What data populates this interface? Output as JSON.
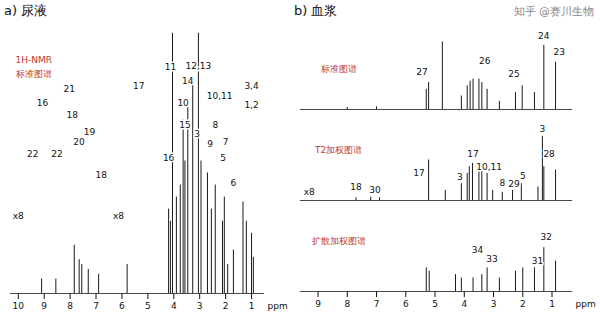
{
  "chart_data": [
    {
      "type": "stem",
      "title": "a) 尿液",
      "color": "#1a1a1a",
      "x": [
        0.93,
        1.0,
        1.2,
        1.33,
        1.7,
        1.92,
        2.05,
        2.12,
        2.4,
        2.55,
        2.7,
        2.95,
        3.05,
        3.27,
        3.46,
        3.57,
        3.64,
        3.75,
        3.9,
        4.05,
        4.13,
        4.2,
        5.8,
        6.9,
        7.3,
        7.55,
        7.65,
        7.84,
        8.55,
        9.1
      ],
      "values": [
        15,
        25,
        30,
        38,
        18,
        12,
        40,
        30,
        45,
        35,
        50,
        55,
        108,
        90,
        78,
        55,
        72,
        45,
        40,
        108,
        30,
        35,
        12,
        8,
        10,
        12,
        14,
        20,
        6,
        6
      ],
      "xlim": [
        10.3,
        0.5
      ],
      "xticks": [
        10,
        9,
        8,
        7,
        6,
        5,
        4,
        3,
        2,
        1
      ],
      "ylim": [
        0,
        110
      ],
      "xlabel": "ppm",
      "tick_labels": "x",
      "annotations": [
        {
          "text": "1H-NMR",
          "x": 9.4,
          "y": 97,
          "color": "#c0392b"
        },
        {
          "text": "标准图谱",
          "x": 9.4,
          "y": 91,
          "color": "#c0392b"
        },
        {
          "text": "1,2",
          "x": 1.0,
          "y": 78
        },
        {
          "text": "3,4",
          "x": 1.0,
          "y": 86
        },
        {
          "text": "5",
          "x": 2.1,
          "y": 56
        },
        {
          "text": "7",
          "x": 2.0,
          "y": 63
        },
        {
          "text": "8",
          "x": 2.4,
          "y": 70
        },
        {
          "text": "9",
          "x": 2.6,
          "y": 62
        },
        {
          "text": "6",
          "x": 1.7,
          "y": 46
        },
        {
          "text": "10,11",
          "x": 2.23,
          "y": 82
        },
        {
          "text": "12,13",
          "x": 3.05,
          "y": 94.5
        },
        {
          "text": "3",
          "x": 3.1,
          "y": 66
        },
        {
          "text": "14",
          "x": 3.46,
          "y": 88
        },
        {
          "text": "15",
          "x": 3.57,
          "y": 70
        },
        {
          "text": "10",
          "x": 3.64,
          "y": 79
        },
        {
          "text": "11",
          "x": 4.13,
          "y": 94
        },
        {
          "text": "16",
          "x": 4.2,
          "y": 56
        },
        {
          "text": "17",
          "x": 5.35,
          "y": 86
        },
        {
          "text": "16",
          "x": 9.07,
          "y": 79
        },
        {
          "text": "22",
          "x": 9.44,
          "y": 58
        },
        {
          "text": "22",
          "x": 8.51,
          "y": 58
        },
        {
          "text": "21",
          "x": 8.03,
          "y": 85
        },
        {
          "text": "18",
          "x": 7.92,
          "y": 74
        },
        {
          "text": "20",
          "x": 7.66,
          "y": 63
        },
        {
          "text": "19",
          "x": 7.25,
          "y": 67
        },
        {
          "text": "18",
          "x": 6.8,
          "y": 49
        },
        {
          "text": "x8",
          "x": 10.0,
          "y": 32
        },
        {
          "text": "x8",
          "x": 6.13,
          "y": 32
        }
      ]
    },
    {
      "type": "stem",
      "title": "b) 血浆",
      "watermark": "知乎 @赛川生物",
      "color": "#1a1a1a",
      "x": [
        0.88,
        1.28,
        1.6,
        2.02,
        2.25,
        2.8,
        3.22,
        3.4,
        3.5,
        3.7,
        3.8,
        3.9,
        4.1,
        4.75,
        5.22,
        5.3,
        7.0,
        8.0
      ],
      "values": [
        70,
        95,
        25,
        35,
        25,
        12,
        30,
        40,
        45,
        45,
        42,
        35,
        20,
        100,
        40,
        30,
        4,
        3
      ],
      "xlim": [
        9.6,
        0.3
      ],
      "ylim": [
        0,
        120
      ],
      "tick_labels": false,
      "annotations": [
        {
          "text": "标准图谱",
          "x": 8.3,
          "y": 60,
          "color": "#c0392b"
        },
        {
          "text": "24",
          "x": 1.28,
          "y": 108
        },
        {
          "text": "23",
          "x": 0.75,
          "y": 85
        },
        {
          "text": "25",
          "x": 2.3,
          "y": 52
        },
        {
          "text": "26",
          "x": 3.3,
          "y": 72
        },
        {
          "text": "27",
          "x": 5.45,
          "y": 55
        }
      ]
    },
    {
      "type": "stem",
      "color": "#1a1a1a",
      "x": [
        0.88,
        1.28,
        1.33,
        1.48,
        2.05,
        2.35,
        2.7,
        3.03,
        3.22,
        3.4,
        3.5,
        3.72,
        3.83,
        3.9,
        4.1,
        4.65,
        5.22,
        6.9,
        7.2,
        7.7
      ],
      "values": [
        45,
        50,
        95,
        20,
        25,
        15,
        12,
        15,
        40,
        50,
        55,
        55,
        50,
        40,
        25,
        15,
        60,
        4,
        5,
        4
      ],
      "xlim": [
        9.6,
        0.3
      ],
      "ylim": [
        0,
        120
      ],
      "tick_labels": false,
      "annotations": [
        {
          "text": "T2加权图谱",
          "x": 8.3,
          "y": 75,
          "color": "#c0392b"
        },
        {
          "text": "3",
          "x": 1.33,
          "y": 106
        },
        {
          "text": "28",
          "x": 1.1,
          "y": 68
        },
        {
          "text": "5",
          "x": 2.0,
          "y": 36
        },
        {
          "text": "29",
          "x": 2.3,
          "y": 24
        },
        {
          "text": "8",
          "x": 2.7,
          "y": 26
        },
        {
          "text": "10,11",
          "x": 3.15,
          "y": 50
        },
        {
          "text": "17",
          "x": 3.7,
          "y": 68
        },
        {
          "text": "3",
          "x": 4.15,
          "y": 34
        },
        {
          "text": "17",
          "x": 5.55,
          "y": 40
        },
        {
          "text": "18",
          "x": 7.7,
          "y": 20
        },
        {
          "text": "30",
          "x": 7.05,
          "y": 16
        },
        {
          "text": "x8",
          "x": 9.3,
          "y": 12
        }
      ]
    },
    {
      "type": "stem",
      "color": "#1a1a1a",
      "x": [
        0.88,
        1.28,
        1.6,
        2.0,
        2.25,
        2.8,
        3.22,
        3.4,
        3.7,
        4.1,
        4.3,
        5.2,
        5.3
      ],
      "values": [
        45,
        65,
        35,
        35,
        30,
        20,
        35,
        25,
        20,
        20,
        25,
        30,
        35
      ],
      "xlim": [
        9.6,
        0.3
      ],
      "xticks": [
        9,
        8,
        7,
        6,
        5,
        4,
        3,
        2,
        1
      ],
      "ylim": [
        0,
        120
      ],
      "xlabel": "ppm",
      "tick_labels": "x",
      "annotations": [
        {
          "text": "扩散加权图谱",
          "x": 8.3,
          "y": 75,
          "color": "#c0392b"
        },
        {
          "text": "32",
          "x": 1.2,
          "y": 80
        },
        {
          "text": "31",
          "x": 1.5,
          "y": 45
        },
        {
          "text": "33",
          "x": 3.05,
          "y": 48
        },
        {
          "text": "34",
          "x": 3.55,
          "y": 62
        }
      ]
    }
  ]
}
